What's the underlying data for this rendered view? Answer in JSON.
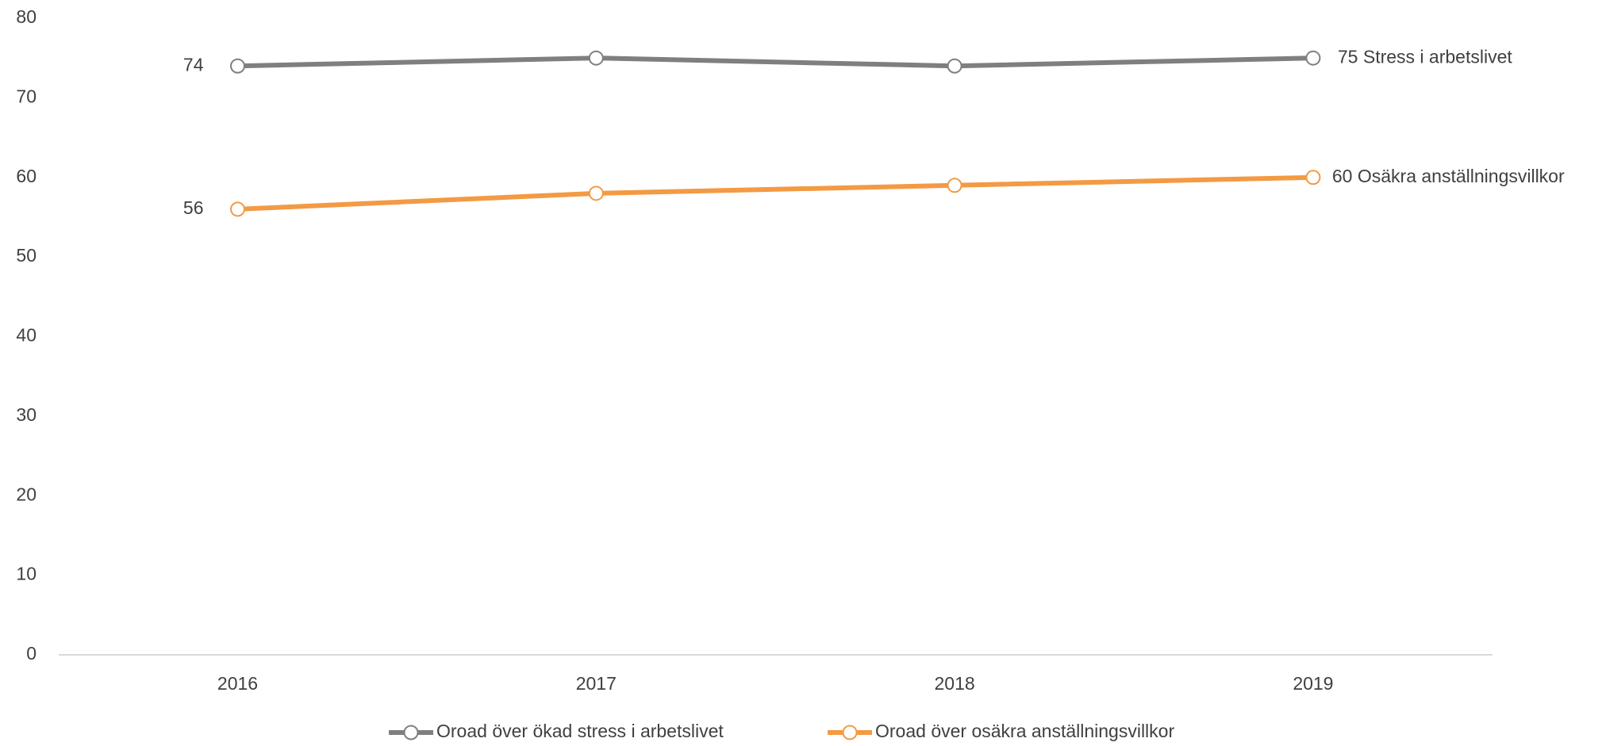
{
  "chart_data": {
    "type": "line",
    "categories": [
      "2016",
      "2017",
      "2018",
      "2019"
    ],
    "series": [
      {
        "name": "Oroad över ökad stress i arbetslivet",
        "color": "#7f7f7f",
        "values": [
          74,
          75,
          74,
          75
        ],
        "value_labels": [
          "74",
          null,
          null,
          "75 Stress i arbetslivet"
        ]
      },
      {
        "name": "Oroad över osäkra anställningsvillkor",
        "color": "#f39a44",
        "values": [
          56,
          58,
          59,
          60
        ],
        "value_labels": [
          "56",
          null,
          null,
          "60 Osäkra anställningsvillkor"
        ]
      }
    ],
    "ylim": [
      0,
      80
    ],
    "yticks": [
      0,
      10,
      20,
      30,
      40,
      50,
      60,
      70,
      80
    ],
    "grid": false,
    "legend": "bottom"
  }
}
